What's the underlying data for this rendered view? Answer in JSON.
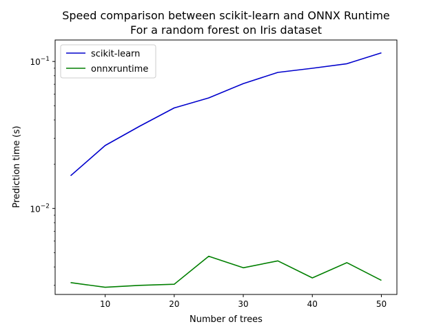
{
  "chart_data": {
    "type": "line",
    "title": "Speed comparison between scikit-learn and ONNX Runtime",
    "subtitle": "For a random forest on Iris dataset",
    "xlabel": "Number of trees",
    "ylabel": "Prediction time (s)",
    "xlim": [
      2.75,
      52.25
    ],
    "ylim": [
      0.0026,
      0.14
    ],
    "yscale": "log",
    "xticks": [
      10,
      20,
      30,
      40,
      50
    ],
    "yticks": [
      {
        "value": 0.01,
        "base": "10",
        "exp": "−2"
      },
      {
        "value": 0.1,
        "base": "10",
        "exp": "−1"
      }
    ],
    "grid": false,
    "legend_position": "top-left",
    "x": [
      5,
      10,
      15,
      20,
      25,
      30,
      35,
      40,
      45,
      50
    ],
    "series": [
      {
        "name": "scikit-learn",
        "color": "#0000cc",
        "values": [
          0.0167,
          0.0268,
          0.0363,
          0.0483,
          0.0565,
          0.0707,
          0.0843,
          0.0899,
          0.0965,
          0.1145
        ]
      },
      {
        "name": "onnxruntime",
        "color": "#007f00",
        "values": [
          0.00313,
          0.00291,
          0.003,
          0.00305,
          0.00473,
          0.00395,
          0.0044,
          0.00337,
          0.00428,
          0.00324
        ]
      }
    ]
  }
}
